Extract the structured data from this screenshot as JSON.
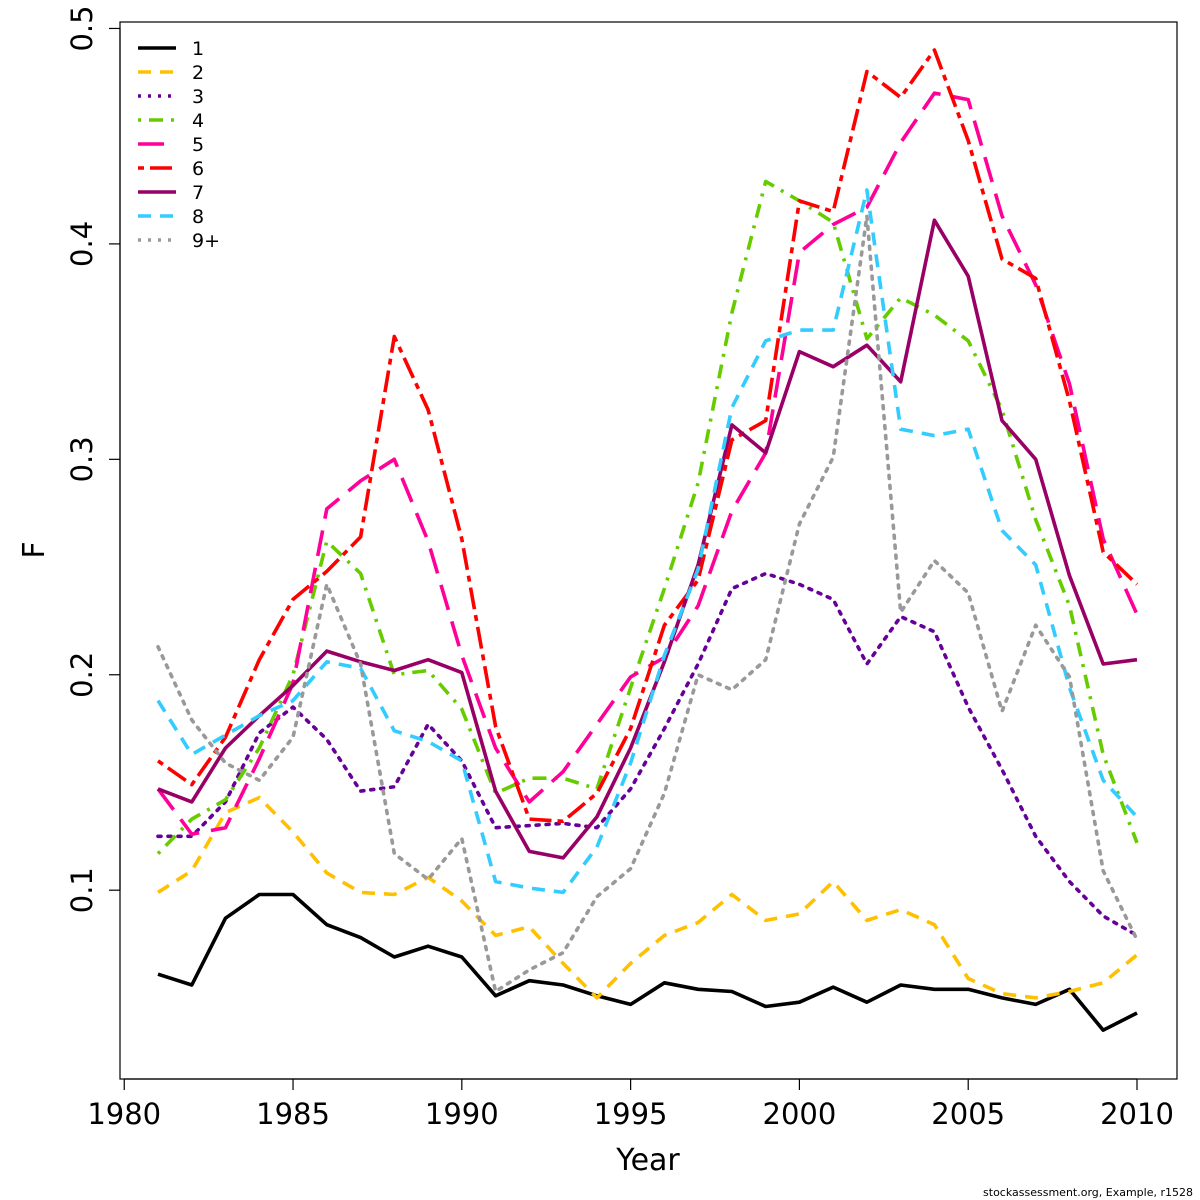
{
  "footer": "stockassessment.org, Example, r1528",
  "colors": {
    "1": "#000000",
    "2": "#ffc000",
    "3": "#660099",
    "4": "#66cc00",
    "5": "#ff0099",
    "6": "#ff0000",
    "7": "#990066",
    "8": "#33ccff",
    "9+": "#999999"
  },
  "chart_data": {
    "type": "line",
    "title": "",
    "xlabel": "Year",
    "ylabel": "F",
    "xlim": [
      1981,
      2010
    ],
    "ylim": [
      0.03,
      0.5
    ],
    "x_ticks": [
      1980,
      1985,
      1990,
      1995,
      2000,
      2005,
      2010
    ],
    "y_ticks": [
      0.1,
      0.2,
      0.3,
      0.4,
      0.5
    ],
    "grid": false,
    "legend_position": "top-left",
    "x": [
      1981,
      1982,
      1983,
      1984,
      1985,
      1986,
      1987,
      1988,
      1989,
      1990,
      1991,
      1992,
      1993,
      1994,
      1995,
      1996,
      1997,
      1998,
      1999,
      2000,
      2001,
      2002,
      2003,
      2004,
      2005,
      2006,
      2007,
      2008,
      2009,
      2010
    ],
    "series": [
      {
        "name": "1",
        "color": "#000000",
        "dash": "solid",
        "values": [
          0.061,
          0.056,
          0.087,
          0.098,
          0.098,
          0.084,
          0.078,
          0.069,
          0.074,
          0.069,
          0.051,
          0.058,
          0.056,
          0.051,
          0.047,
          0.057,
          0.054,
          0.053,
          0.046,
          0.048,
          0.055,
          0.048,
          0.056,
          0.054,
          0.054,
          0.05,
          0.047,
          0.054,
          0.035,
          0.043
        ]
      },
      {
        "name": "2",
        "color": "#ffc000",
        "dash": "dashed",
        "values": [
          0.099,
          0.109,
          0.136,
          0.143,
          0.127,
          0.108,
          0.099,
          0.098,
          0.106,
          0.095,
          0.079,
          0.083,
          0.066,
          0.05,
          0.066,
          0.079,
          0.085,
          0.098,
          0.086,
          0.089,
          0.104,
          0.086,
          0.091,
          0.084,
          0.059,
          0.052,
          0.05,
          0.053,
          0.057,
          0.07
        ]
      },
      {
        "name": "3",
        "color": "#660099",
        "dash": "dotted",
        "values": [
          0.125,
          0.125,
          0.141,
          0.173,
          0.185,
          0.17,
          0.146,
          0.148,
          0.177,
          0.16,
          0.129,
          0.13,
          0.131,
          0.129,
          0.147,
          0.175,
          0.205,
          0.24,
          0.247,
          0.242,
          0.235,
          0.205,
          0.227,
          0.22,
          0.185,
          0.156,
          0.125,
          0.104,
          0.088,
          0.079
        ]
      },
      {
        "name": "4",
        "color": "#66cc00",
        "dash": "dashdot",
        "values": [
          0.117,
          0.133,
          0.142,
          0.166,
          0.2,
          0.262,
          0.247,
          0.2,
          0.202,
          0.184,
          0.145,
          0.152,
          0.152,
          0.147,
          0.194,
          0.24,
          0.289,
          0.368,
          0.429,
          0.42,
          0.41,
          0.356,
          0.375,
          0.367,
          0.355,
          0.323,
          0.272,
          0.232,
          0.163,
          0.122
        ]
      },
      {
        "name": "5",
        "color": "#ff0099",
        "dash": "longdash",
        "values": [
          0.147,
          0.126,
          0.129,
          0.161,
          0.196,
          0.277,
          0.29,
          0.3,
          0.262,
          0.209,
          0.166,
          0.141,
          0.155,
          0.177,
          0.199,
          0.208,
          0.232,
          0.276,
          0.303,
          0.396,
          0.409,
          0.417,
          0.447,
          0.47,
          0.467,
          0.413,
          0.381,
          0.335,
          0.263,
          0.228
        ]
      },
      {
        "name": "6",
        "color": "#ff0000",
        "dash": "twodash",
        "values": [
          0.16,
          0.149,
          0.171,
          0.207,
          0.235,
          0.248,
          0.264,
          0.357,
          0.323,
          0.263,
          0.176,
          0.133,
          0.132,
          0.145,
          0.175,
          0.223,
          0.244,
          0.309,
          0.318,
          0.42,
          0.415,
          0.48,
          0.468,
          0.49,
          0.448,
          0.393,
          0.384,
          0.327,
          0.257,
          0.242
        ]
      },
      {
        "name": "7",
        "color": "#990066",
        "dash": "solid",
        "values": [
          0.147,
          0.141,
          0.166,
          0.181,
          0.195,
          0.211,
          0.206,
          0.202,
          0.207,
          0.201,
          0.146,
          0.118,
          0.115,
          0.134,
          0.166,
          0.206,
          0.251,
          0.316,
          0.303,
          0.35,
          0.343,
          0.353,
          0.336,
          0.411,
          0.385,
          0.318,
          0.3,
          0.246,
          0.205,
          0.207
        ]
      },
      {
        "name": "8",
        "color": "#33ccff",
        "dash": "dashed",
        "values": [
          0.188,
          0.163,
          0.172,
          0.181,
          0.188,
          0.206,
          0.203,
          0.174,
          0.169,
          0.16,
          0.104,
          0.101,
          0.099,
          0.12,
          0.159,
          0.209,
          0.249,
          0.324,
          0.355,
          0.36,
          0.36,
          0.425,
          0.314,
          0.311,
          0.314,
          0.267,
          0.251,
          0.194,
          0.151,
          0.134
        ]
      },
      {
        "name": "9+",
        "color": "#999999",
        "dash": "dotted",
        "values": [
          0.213,
          0.179,
          0.159,
          0.151,
          0.171,
          0.242,
          0.205,
          0.117,
          0.105,
          0.124,
          0.053,
          0.063,
          0.071,
          0.097,
          0.11,
          0.145,
          0.2,
          0.193,
          0.207,
          0.27,
          0.301,
          0.413,
          0.229,
          0.253,
          0.238,
          0.183,
          0.223,
          0.199,
          0.109,
          0.077
        ]
      }
    ]
  }
}
